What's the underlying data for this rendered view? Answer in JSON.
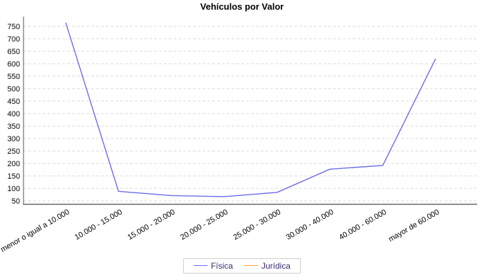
{
  "chart_data": {
    "type": "line",
    "title": "Vehículos por Valor",
    "categories": [
      "menor o igual a 10.000",
      "10.000 - 15.000",
      "15.000 - 20.000",
      "20.000 - 25.000",
      "25.000 - 30.000",
      "30.000 - 40.000",
      "40.000 - 60.000",
      "mayor de 60.000"
    ],
    "series": [
      {
        "name": "Física",
        "color": "#6a6aea",
        "values": [
          765,
          88,
          71,
          67,
          84,
          177,
          192,
          620
        ]
      },
      {
        "name": "Jurídica",
        "color": "#ff9933",
        "values": []
      }
    ],
    "yticks": [
      50,
      100,
      150,
      200,
      250,
      300,
      350,
      400,
      450,
      500,
      550,
      600,
      650,
      700,
      750
    ],
    "ylim": [
      36,
      786
    ],
    "xlabel": "",
    "ylabel": "",
    "grid": "horizontal-dashed",
    "legend_position": "bottom"
  },
  "colors": {
    "grid": "#d8d8d8",
    "axis": "#8c8c8c",
    "tick_text": "#000000",
    "legend_text": "#3a2b6e",
    "background": "#ffffff"
  }
}
